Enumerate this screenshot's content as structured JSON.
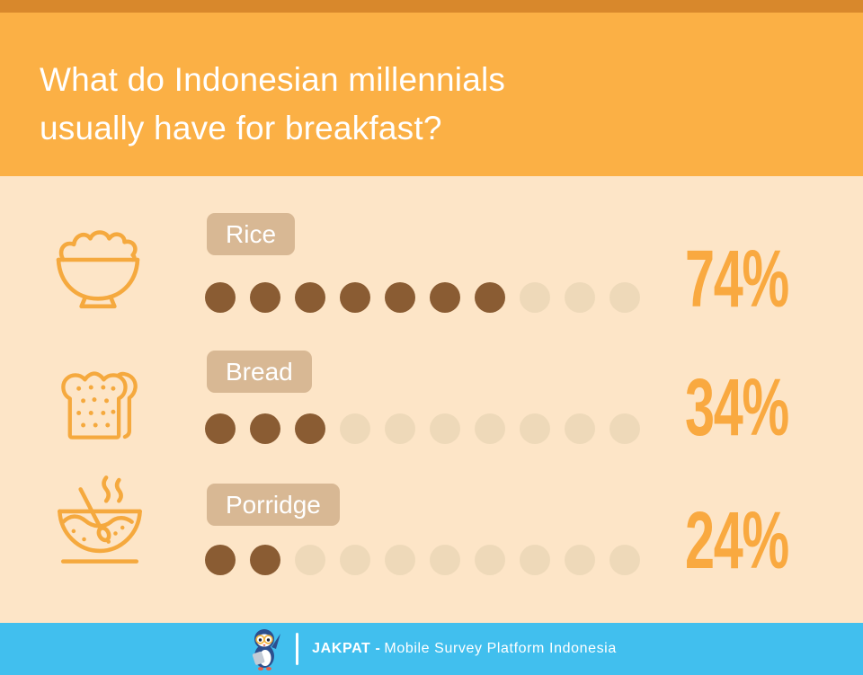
{
  "header": {
    "title_lines": [
      "What do Indonesian millennials",
      "usually have for breakfast?"
    ]
  },
  "chart_data": {
    "type": "bar",
    "subtype": "pictograph-dot-units",
    "title": "What do Indonesian millennials usually have for breakfast?",
    "categories": [
      "Rice",
      "Bread",
      "Porridge"
    ],
    "values": [
      74,
      34,
      24
    ],
    "unit_dots_total": 10,
    "unit_dots_filled": [
      7,
      3,
      2
    ],
    "value_suffix": "%",
    "legend_position": "none",
    "grid": false
  },
  "rows": [
    {
      "label": "Rice",
      "value": "74%",
      "percent": 74,
      "filled": 7,
      "total": 10,
      "icon": "rice-bowl-icon"
    },
    {
      "label": "Bread",
      "value": "34%",
      "percent": 34,
      "filled": 3,
      "total": 10,
      "icon": "bread-slice-icon"
    },
    {
      "label": "Porridge",
      "value": "24%",
      "percent": 24,
      "filled": 2,
      "total": 10,
      "icon": "porridge-bowl-icon"
    }
  ],
  "footer": {
    "brand": "JAKPAT -",
    "tagline": "Mobile Survey Platform Indonesia",
    "logo": "jakpat-penguin-logo"
  },
  "colors": {
    "strip_top": "#d8882c",
    "header_bg": "#fbb045",
    "body_bg": "#fde5c7",
    "badge_bg": "#d8b894",
    "dot_filled": "#8a5c33",
    "dot_empty": "#eed9b9",
    "percent_color": "#f9a940",
    "icon_stroke": "#f5a93e",
    "footer_bg": "#41bfee"
  }
}
